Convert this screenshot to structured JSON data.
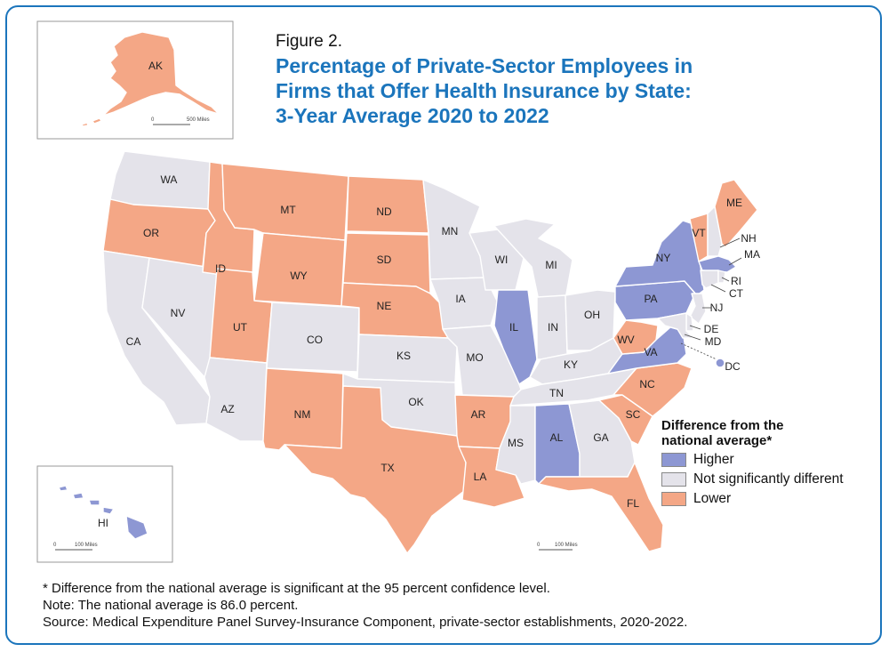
{
  "figure_label": "Figure 2.",
  "title_lines": [
    "Percentage of Private-Sector Employees in",
    "Firms that Offer Health Insurance by State:",
    "3-Year Average 2020 to 2022"
  ],
  "legend": {
    "title_lines": [
      "Difference from the",
      "national average*"
    ],
    "items": [
      {
        "key": "higher",
        "label": "Higher",
        "color": "#8d97d3"
      },
      {
        "key": "same",
        "label": "Not significantly different",
        "color": "#e4e3ea"
      },
      {
        "key": "lower",
        "label": "Lower",
        "color": "#f4a786"
      }
    ]
  },
  "state_categories": {
    "WA": "same",
    "OR": "lower",
    "CA": "same",
    "NV": "same",
    "ID": "lower",
    "MT": "lower",
    "WY": "lower",
    "UT": "lower",
    "AZ": "same",
    "CO": "same",
    "NM": "lower",
    "ND": "lower",
    "SD": "lower",
    "NE": "lower",
    "KS": "same",
    "OK": "same",
    "TX": "lower",
    "MN": "same",
    "IA": "same",
    "MO": "same",
    "AR": "lower",
    "LA": "lower",
    "WI": "same",
    "IL": "higher",
    "MI": "same",
    "IN": "same",
    "OH": "same",
    "KY": "same",
    "TN": "same",
    "MS": "same",
    "AL": "higher",
    "GA": "same",
    "FL": "lower",
    "SC": "lower",
    "NC": "lower",
    "VA": "higher",
    "WV": "lower",
    "PA": "higher",
    "NY": "higher",
    "VT": "lower",
    "NH": "same",
    "ME": "lower",
    "MA": "higher",
    "RI": "same",
    "CT": "same",
    "NJ": "same",
    "DE": "same",
    "MD": "same",
    "DC": "higher",
    "AK": "lower",
    "HI": "higher"
  },
  "scales": {
    "alaska": "500 Miles",
    "hawaii": "100 Miles",
    "conus": "100 Miles",
    "zero": "0"
  },
  "notes": [
    "* Difference from the national average is significant at the 95 percent confidence level.",
    "Note: The national average is 86.0 percent.",
    "Source: Medical Expenditure Panel Survey-Insurance Component, private-sector establishments, 2020-2022."
  ]
}
